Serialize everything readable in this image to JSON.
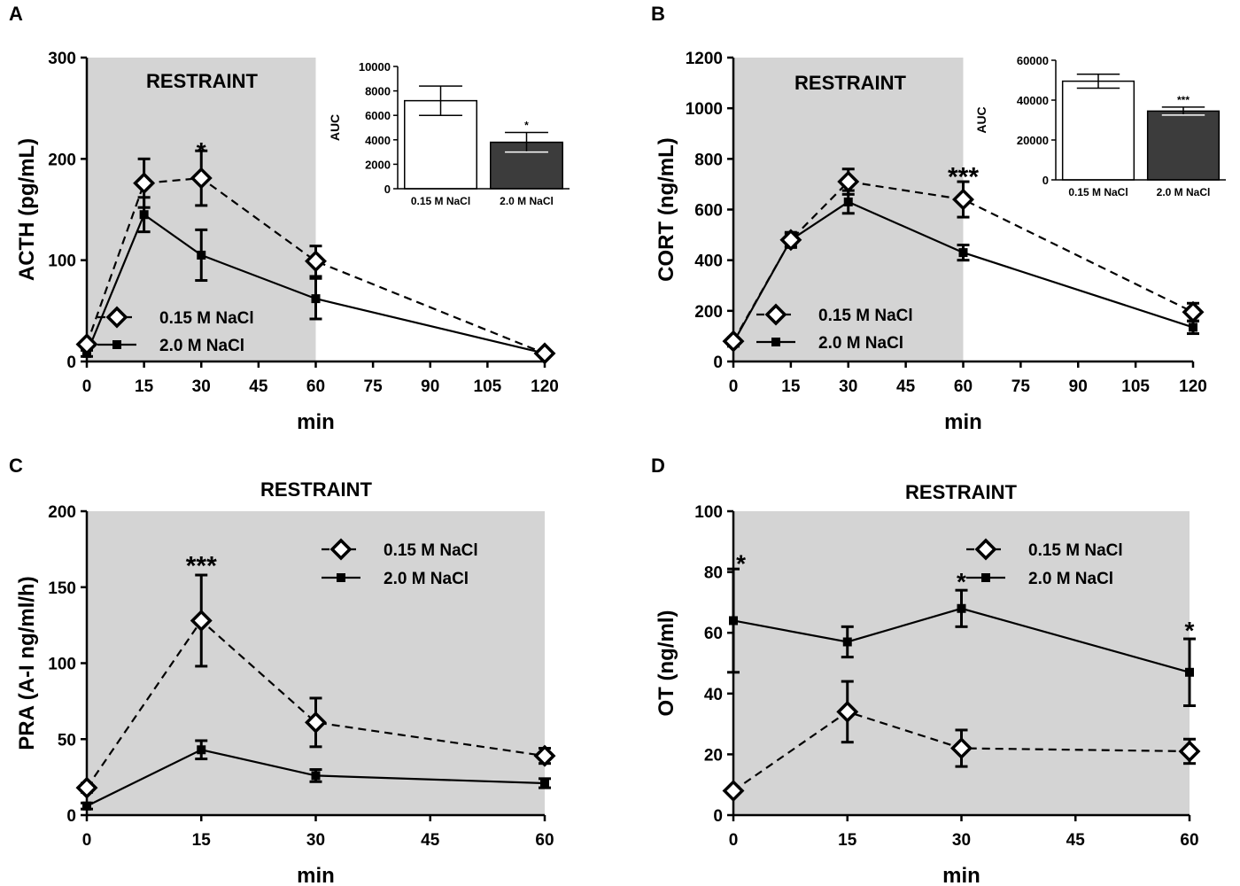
{
  "chart_data": [
    {
      "type": "line",
      "panel": "A",
      "title": "RESTRAINT",
      "xlabel": "min",
      "ylabel": "ACTH (pg/mL)",
      "xlim": [
        0,
        120
      ],
      "ylim": [
        0,
        300
      ],
      "xticks": [
        0,
        15,
        30,
        45,
        60,
        75,
        90,
        105,
        120
      ],
      "yticks": [
        0,
        100,
        200,
        300
      ],
      "shade": [
        0,
        60
      ],
      "legend_position": "bottom-left",
      "series": [
        {
          "name": "0.15 M NaCl",
          "marker": "diamond",
          "dash": true,
          "x": [
            0,
            15,
            30,
            60,
            120
          ],
          "y": [
            17,
            176,
            181,
            99,
            8
          ],
          "err": [
            3,
            24,
            27,
            15,
            2
          ]
        },
        {
          "name": "2.0 M NaCl",
          "marker": "square",
          "dash": false,
          "x": [
            0,
            15,
            30,
            60,
            120
          ],
          "y": [
            8,
            145,
            105,
            62,
            8
          ],
          "err": [
            3,
            17,
            25,
            20,
            2
          ]
        }
      ],
      "annotations": [
        {
          "x": 30,
          "y": 208,
          "text": "*"
        }
      ],
      "inset": {
        "type": "bar",
        "ylabel": "AUC",
        "ylim": [
          0,
          10000
        ],
        "yticks": [
          0,
          2000,
          4000,
          6000,
          8000,
          10000
        ],
        "categories": [
          "0.15 M NaCl",
          "2.0 M NaCl"
        ],
        "values": [
          7200,
          3800
        ],
        "err": [
          1200,
          800
        ],
        "annotations": [
          "",
          "*"
        ]
      }
    },
    {
      "type": "line",
      "panel": "B",
      "title": "RESTRAINT",
      "xlabel": "min",
      "ylabel": "CORT (ng/mL)",
      "xlim": [
        0,
        120
      ],
      "ylim": [
        0,
        1200
      ],
      "xticks": [
        0,
        15,
        30,
        45,
        60,
        75,
        90,
        105,
        120
      ],
      "yticks": [
        0,
        200,
        400,
        600,
        800,
        1000,
        1200
      ],
      "shade": [
        0,
        60
      ],
      "legend_position": "bottom-left",
      "series": [
        {
          "name": "0.15 M NaCl",
          "marker": "diamond",
          "dash": true,
          "x": [
            0,
            15,
            30,
            60,
            120
          ],
          "y": [
            80,
            480,
            710,
            640,
            195
          ],
          "err": [
            15,
            25,
            50,
            70,
            35
          ]
        },
        {
          "name": "2.0 M NaCl",
          "marker": "square",
          "dash": false,
          "x": [
            0,
            15,
            30,
            60,
            120
          ],
          "y": [
            75,
            480,
            630,
            430,
            135
          ],
          "err": [
            15,
            30,
            45,
            30,
            25
          ]
        }
      ],
      "annotations": [
        {
          "x": 60,
          "y": 730,
          "text": "***"
        }
      ],
      "inset": {
        "type": "bar",
        "ylabel": "AUC",
        "ylim": [
          0,
          60000
        ],
        "yticks": [
          0,
          20000,
          40000,
          60000
        ],
        "categories": [
          "0.15 M NaCl",
          "2.0 M NaCl"
        ],
        "values": [
          49500,
          34500
        ],
        "err": [
          3500,
          2000
        ],
        "annotations": [
          "",
          "***"
        ]
      }
    },
    {
      "type": "line",
      "panel": "C",
      "title": "RESTRAINT",
      "xlabel": "min",
      "ylabel": "PRA (A-I ng/ml/h)",
      "xlim": [
        0,
        60
      ],
      "ylim": [
        0,
        200
      ],
      "xticks": [
        0,
        15,
        30,
        45,
        60
      ],
      "yticks": [
        0,
        50,
        100,
        150,
        200
      ],
      "shade": [
        0,
        60
      ],
      "legend_position": "top-right",
      "series": [
        {
          "name": "0.15 M NaCl",
          "marker": "diamond",
          "dash": true,
          "x": [
            0,
            15,
            30,
            60
          ],
          "y": [
            18,
            128,
            61,
            39
          ],
          "err": [
            3,
            30,
            16,
            5
          ]
        },
        {
          "name": "2.0 M NaCl",
          "marker": "square",
          "dash": false,
          "x": [
            0,
            15,
            30,
            60
          ],
          "y": [
            6,
            43,
            26,
            21
          ],
          "err": [
            2,
            6,
            4,
            3
          ]
        }
      ],
      "annotations": [
        {
          "x": 15,
          "y": 164,
          "text": "***"
        }
      ]
    },
    {
      "type": "line",
      "panel": "D",
      "title": "RESTRAINT",
      "xlabel": "min",
      "ylabel": "OT (ng/ml)",
      "xlim": [
        0,
        60
      ],
      "ylim": [
        0,
        100
      ],
      "xticks": [
        0,
        15,
        30,
        45,
        60
      ],
      "yticks": [
        0,
        20,
        40,
        60,
        80,
        100
      ],
      "shade": [
        0,
        60
      ],
      "legend_position": "top-right",
      "series": [
        {
          "name": "0.15 M NaCl",
          "marker": "diamond",
          "dash": true,
          "x": [
            0,
            15,
            30,
            60
          ],
          "y": [
            8,
            34,
            22,
            21
          ],
          "err": [
            1,
            10,
            6,
            4
          ]
        },
        {
          "name": "2.0 M NaCl",
          "marker": "square",
          "dash": false,
          "x": [
            0,
            15,
            30,
            60
          ],
          "y": [
            64,
            57,
            68,
            47
          ],
          "err": [
            17,
            5,
            6,
            11
          ]
        }
      ],
      "annotations": [
        {
          "x": 1,
          "y": 83,
          "text": "*"
        },
        {
          "x": 30,
          "y": 77,
          "text": "*"
        },
        {
          "x": 60,
          "y": 61,
          "text": "*"
        }
      ]
    }
  ]
}
